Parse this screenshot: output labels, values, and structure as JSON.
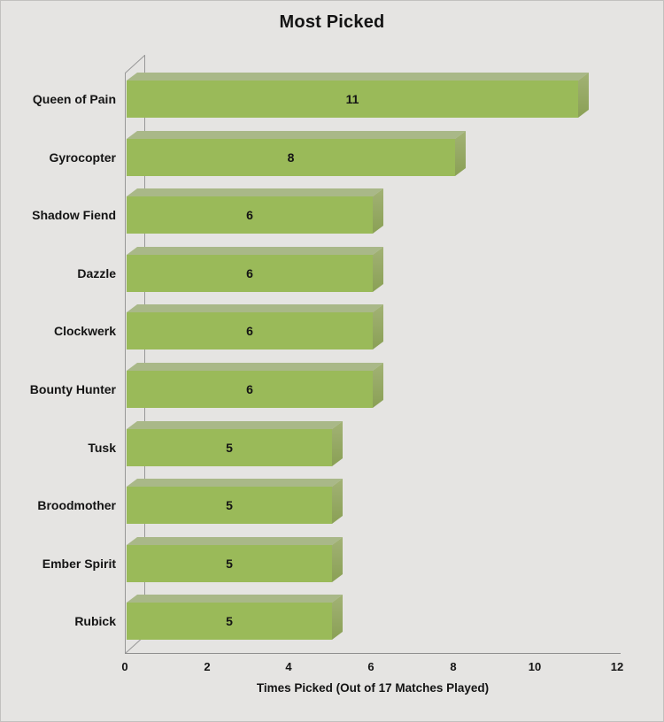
{
  "title": "Most Picked",
  "chart_data": {
    "type": "bar",
    "orientation": "horizontal",
    "style": "3d",
    "title": "Most Picked",
    "xlabel": "Times Picked (Out of 17 Matches Played)",
    "ylabel": "",
    "categories": [
      "Queen of Pain",
      "Gyrocopter",
      "Shadow Fiend",
      "Dazzle",
      "Clockwerk",
      "Bounty Hunter",
      "Tusk",
      "Broodmother",
      "Ember Spirit",
      "Rubick"
    ],
    "values": [
      11,
      8,
      6,
      6,
      6,
      6,
      5,
      5,
      5,
      5
    ],
    "xlim": [
      0,
      12
    ],
    "xticks": [
      0,
      2,
      4,
      6,
      8,
      10,
      12
    ],
    "data_labels": true,
    "grid": false,
    "legend": false,
    "colors": {
      "bar_front": "#9aba59",
      "bar_top": "#a9b888",
      "bar_side_light": "#a2b275",
      "bar_side_dark": "#8aa055",
      "axis_line": "#979797",
      "background": "#e5e4e2",
      "text": "#141414"
    }
  }
}
